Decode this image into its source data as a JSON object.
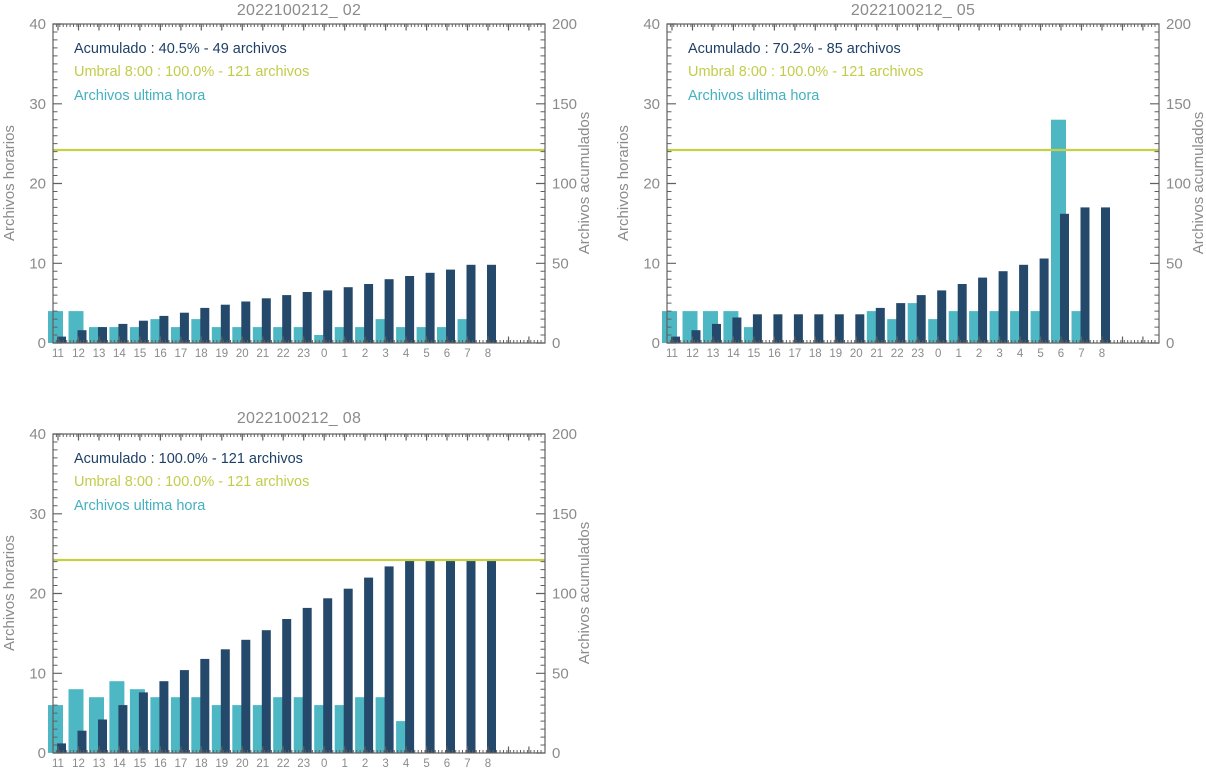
{
  "colors": {
    "background": "#FFFFFF",
    "hourly_bar": "#4DB8C4",
    "accumulated_bar": "#24496B",
    "threshold_line": "#C5D044",
    "label_gray": "#8B8B8B",
    "axis": "#606060",
    "legend_accumulated_text": "#1F4066",
    "legend_threshold_text": "#C2CC4A",
    "legend_hourly_text": "#44B0C0"
  },
  "chart_data": [
    {
      "type": "bar",
      "title": "2022100212_ 02",
      "categories": [
        "11",
        "12",
        "13",
        "14",
        "15",
        "16",
        "17",
        "18",
        "19",
        "20",
        "21",
        "22",
        "23",
        "0",
        "1",
        "2",
        "3",
        "4",
        "5",
        "6",
        "7",
        "8"
      ],
      "series": [
        {
          "name": "Archivos ultima hora",
          "axis": "left",
          "values": [
            4,
            4,
            2,
            2,
            2,
            3,
            2,
            3,
            2,
            2,
            2,
            2,
            2,
            1,
            2,
            2,
            3,
            2,
            2,
            2,
            3,
            0
          ]
        },
        {
          "name": "Acumulado",
          "axis": "right",
          "values": [
            4,
            8,
            10,
            12,
            14,
            17,
            19,
            22,
            24,
            26,
            28,
            30,
            32,
            33,
            35,
            37,
            40,
            42,
            44,
            46,
            49,
            49
          ]
        }
      ],
      "threshold": {
        "name": "Umbral 8:00",
        "value": 121,
        "axis": "right"
      },
      "left_axis": {
        "label": "Archivos horarios",
        "min": 0,
        "max": 40,
        "ticks": [
          0,
          10,
          20,
          30,
          40
        ]
      },
      "right_axis": {
        "label": "Archivos acumulados",
        "min": 0,
        "max": 200,
        "ticks": [
          0,
          50,
          100,
          150,
          200
        ]
      },
      "legend": [
        {
          "text": "Acumulado : 40.5% - 49 archivos"
        },
        {
          "text": "Umbral 8:00 : 100.0% - 121 archivos"
        },
        {
          "text": "Archivos ultima hora"
        }
      ]
    },
    {
      "type": "bar",
      "title": "2022100212_ 05",
      "categories": [
        "11",
        "12",
        "13",
        "14",
        "15",
        "16",
        "17",
        "18",
        "19",
        "20",
        "21",
        "22",
        "23",
        "0",
        "1",
        "2",
        "3",
        "4",
        "5",
        "6",
        "7",
        "8"
      ],
      "series": [
        {
          "name": "Archivos ultima hora",
          "axis": "left",
          "values": [
            4,
            4,
            4,
            4,
            2,
            0,
            0,
            0,
            0,
            0,
            4,
            3,
            5,
            3,
            4,
            4,
            4,
            4,
            4,
            28,
            4,
            0
          ]
        },
        {
          "name": "Acumulado",
          "axis": "right",
          "values": [
            4,
            8,
            12,
            16,
            18,
            18,
            18,
            18,
            18,
            18,
            22,
            25,
            30,
            33,
            37,
            41,
            45,
            49,
            53,
            81,
            85,
            85
          ]
        }
      ],
      "threshold": {
        "name": "Umbral 8:00",
        "value": 121,
        "axis": "right"
      },
      "left_axis": {
        "label": "Archivos horarios",
        "min": 0,
        "max": 40,
        "ticks": [
          0,
          10,
          20,
          30,
          40
        ]
      },
      "right_axis": {
        "label": "Archivos acumulados",
        "min": 0,
        "max": 200,
        "ticks": [
          0,
          50,
          100,
          150,
          200
        ]
      },
      "legend": [
        {
          "text": "Acumulado : 70.2% - 85 archivos"
        },
        {
          "text": "Umbral 8:00 : 100.0% - 121 archivos"
        },
        {
          "text": "Archivos ultima hora"
        }
      ]
    },
    {
      "type": "bar",
      "title": "2022100212_ 08",
      "categories": [
        "11",
        "12",
        "13",
        "14",
        "15",
        "16",
        "17",
        "18",
        "19",
        "20",
        "21",
        "22",
        "23",
        "0",
        "1",
        "2",
        "3",
        "4",
        "5",
        "6",
        "7",
        "8"
      ],
      "series": [
        {
          "name": "Archivos ultima hora",
          "axis": "left",
          "values": [
            6,
            8,
            7,
            9,
            8,
            7,
            7,
            7,
            6,
            6,
            6,
            7,
            7,
            6,
            6,
            7,
            7,
            4,
            0,
            0,
            0,
            0
          ]
        },
        {
          "name": "Acumulado",
          "axis": "right",
          "values": [
            6,
            14,
            21,
            30,
            38,
            45,
            52,
            59,
            65,
            71,
            77,
            84,
            91,
            97,
            103,
            110,
            117,
            121,
            121,
            121,
            121,
            121
          ]
        }
      ],
      "threshold": {
        "name": "Umbral 8:00",
        "value": 121,
        "axis": "right"
      },
      "left_axis": {
        "label": "Archivos horarios",
        "min": 0,
        "max": 40,
        "ticks": [
          0,
          10,
          20,
          30,
          40
        ]
      },
      "right_axis": {
        "label": "Archivos acumulados",
        "min": 0,
        "max": 200,
        "ticks": [
          0,
          50,
          100,
          150,
          200
        ]
      },
      "legend": [
        {
          "text": "Acumulado : 100.0% - 121 archivos"
        },
        {
          "text": "Umbral 8:00 : 100.0% - 121 archivos"
        },
        {
          "text": "Archivos ultima hora"
        }
      ]
    }
  ]
}
